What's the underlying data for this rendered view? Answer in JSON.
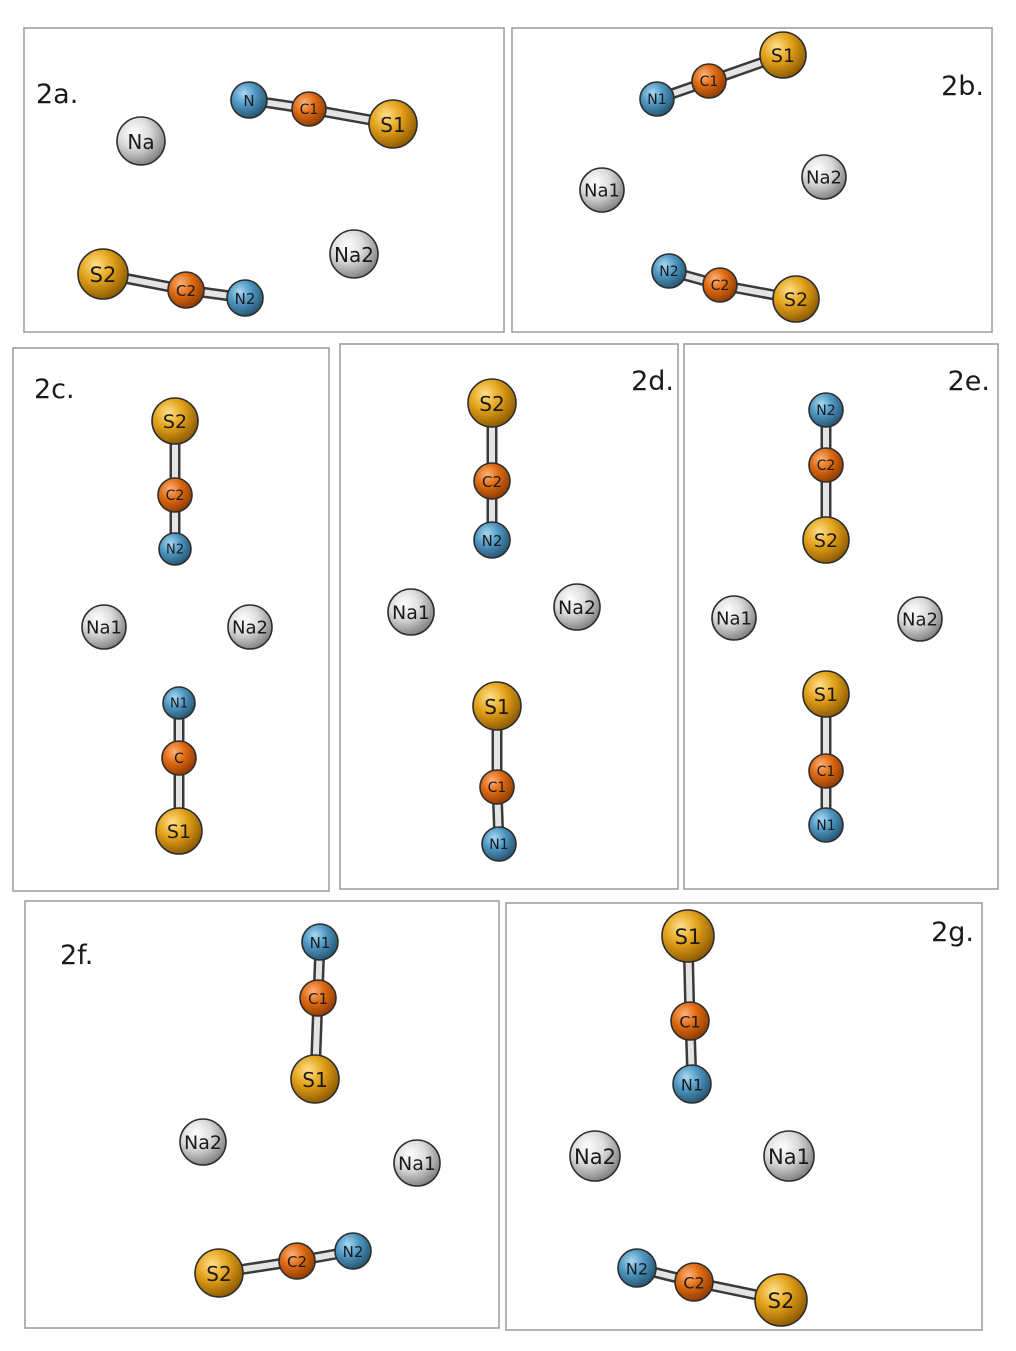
{
  "colors": {
    "Na": "#d9d9d9",
    "S": "#d8920c",
    "C": "#d4610c",
    "N": "#4a8fb8",
    "bond": "#e4e4e4",
    "frame": "#9a9a9a"
  },
  "panels": [
    {
      "label": "2a.",
      "atoms": [
        {
          "id": "a-na1",
          "element": "Na",
          "label": "Na"
        },
        {
          "id": "a-na2",
          "element": "Na",
          "label": "Na2"
        },
        {
          "id": "a-n1",
          "element": "N",
          "label": "N"
        },
        {
          "id": "a-c1",
          "element": "C",
          "label": "C1"
        },
        {
          "id": "a-s1",
          "element": "S",
          "label": "S1"
        },
        {
          "id": "a-s2",
          "element": "S",
          "label": "S2"
        },
        {
          "id": "a-c2",
          "element": "C",
          "label": "C2"
        },
        {
          "id": "a-n2",
          "element": "N",
          "label": "N2"
        }
      ],
      "bonds": [
        [
          "a-n1",
          "a-c1"
        ],
        [
          "a-c1",
          "a-s1"
        ],
        [
          "a-s2",
          "a-c2"
        ],
        [
          "a-c2",
          "a-n2"
        ]
      ]
    },
    {
      "label": "2b.",
      "atoms": [
        {
          "id": "b-n1",
          "element": "N",
          "label": "N1"
        },
        {
          "id": "b-c1",
          "element": "C",
          "label": "C1"
        },
        {
          "id": "b-s1",
          "element": "S",
          "label": "S1"
        },
        {
          "id": "b-na1",
          "element": "Na",
          "label": "Na1"
        },
        {
          "id": "b-na2",
          "element": "Na",
          "label": "Na2"
        },
        {
          "id": "b-n2",
          "element": "N",
          "label": "N2"
        },
        {
          "id": "b-c2",
          "element": "C",
          "label": "C2"
        },
        {
          "id": "b-s2",
          "element": "S",
          "label": "S2"
        }
      ],
      "bonds": [
        [
          "b-n1",
          "b-c1"
        ],
        [
          "b-c1",
          "b-s1"
        ],
        [
          "b-n2",
          "b-c2"
        ],
        [
          "b-c2",
          "b-s2"
        ]
      ]
    },
    {
      "label": "2c.",
      "atoms": [
        {
          "id": "c-s2",
          "element": "S",
          "label": "S2"
        },
        {
          "id": "c-c2",
          "element": "C",
          "label": "C2"
        },
        {
          "id": "c-n2",
          "element": "N",
          "label": "N2"
        },
        {
          "id": "c-na1",
          "element": "Na",
          "label": "Na1"
        },
        {
          "id": "c-na2",
          "element": "Na",
          "label": "Na2"
        },
        {
          "id": "c-n1",
          "element": "N",
          "label": "N1"
        },
        {
          "id": "c-c1",
          "element": "C",
          "label": "C"
        },
        {
          "id": "c-s1",
          "element": "S",
          "label": "S1"
        }
      ],
      "bonds": [
        [
          "c-s2",
          "c-c2"
        ],
        [
          "c-c2",
          "c-n2"
        ],
        [
          "c-n1",
          "c-c1"
        ],
        [
          "c-c1",
          "c-s1"
        ]
      ]
    },
    {
      "label": "2d.",
      "atoms": [
        {
          "id": "d-s2",
          "element": "S",
          "label": "S2"
        },
        {
          "id": "d-c2",
          "element": "C",
          "label": "C2"
        },
        {
          "id": "d-n2",
          "element": "N",
          "label": "N2"
        },
        {
          "id": "d-na1",
          "element": "Na",
          "label": "Na1"
        },
        {
          "id": "d-na2",
          "element": "Na",
          "label": "Na2"
        },
        {
          "id": "d-s1",
          "element": "S",
          "label": "S1"
        },
        {
          "id": "d-c1",
          "element": "C",
          "label": "C1"
        },
        {
          "id": "d-n1",
          "element": "N",
          "label": "N1"
        }
      ],
      "bonds": [
        [
          "d-s2",
          "d-c2"
        ],
        [
          "d-c2",
          "d-n2"
        ],
        [
          "d-s1",
          "d-c1"
        ],
        [
          "d-c1",
          "d-n1"
        ]
      ]
    },
    {
      "label": "2e.",
      "atoms": [
        {
          "id": "e-n2",
          "element": "N",
          "label": "N2"
        },
        {
          "id": "e-c2",
          "element": "C",
          "label": "C2"
        },
        {
          "id": "e-s2",
          "element": "S",
          "label": "S2"
        },
        {
          "id": "e-na1",
          "element": "Na",
          "label": "Na1"
        },
        {
          "id": "e-na2",
          "element": "Na",
          "label": "Na2"
        },
        {
          "id": "e-s1",
          "element": "S",
          "label": "S1"
        },
        {
          "id": "e-c1",
          "element": "C",
          "label": "C1"
        },
        {
          "id": "e-n1",
          "element": "N",
          "label": "N1"
        }
      ],
      "bonds": [
        [
          "e-n2",
          "e-c2"
        ],
        [
          "e-c2",
          "e-s2"
        ],
        [
          "e-s1",
          "e-c1"
        ],
        [
          "e-c1",
          "e-n1"
        ]
      ]
    },
    {
      "label": "2f.",
      "atoms": [
        {
          "id": "f-n1",
          "element": "N",
          "label": "N1"
        },
        {
          "id": "f-c1",
          "element": "C",
          "label": "C1"
        },
        {
          "id": "f-s1",
          "element": "S",
          "label": "S1"
        },
        {
          "id": "f-na2",
          "element": "Na",
          "label": "Na2"
        },
        {
          "id": "f-na1",
          "element": "Na",
          "label": "Na1"
        },
        {
          "id": "f-s2",
          "element": "S",
          "label": "S2"
        },
        {
          "id": "f-c2",
          "element": "C",
          "label": "C2"
        },
        {
          "id": "f-n2",
          "element": "N",
          "label": "N2"
        }
      ],
      "bonds": [
        [
          "f-n1",
          "f-c1"
        ],
        [
          "f-c1",
          "f-s1"
        ],
        [
          "f-s2",
          "f-c2"
        ],
        [
          "f-c2",
          "f-n2"
        ]
      ]
    },
    {
      "label": "2g.",
      "atoms": [
        {
          "id": "g-s1",
          "element": "S",
          "label": "S1"
        },
        {
          "id": "g-c1",
          "element": "C",
          "label": "C1"
        },
        {
          "id": "g-n1",
          "element": "N",
          "label": "N1"
        },
        {
          "id": "g-na2",
          "element": "Na",
          "label": "Na2"
        },
        {
          "id": "g-na1",
          "element": "Na",
          "label": "Na1"
        },
        {
          "id": "g-n2",
          "element": "N",
          "label": "N2"
        },
        {
          "id": "g-c2",
          "element": "C",
          "label": "C2"
        },
        {
          "id": "g-s2",
          "element": "S",
          "label": "S2"
        }
      ],
      "bonds": [
        [
          "g-n2",
          "g-c2"
        ],
        [
          "g-c2",
          "g-s2"
        ],
        [
          "g-s1",
          "g-c1"
        ],
        [
          "g-c1",
          "g-n1"
        ]
      ]
    }
  ]
}
